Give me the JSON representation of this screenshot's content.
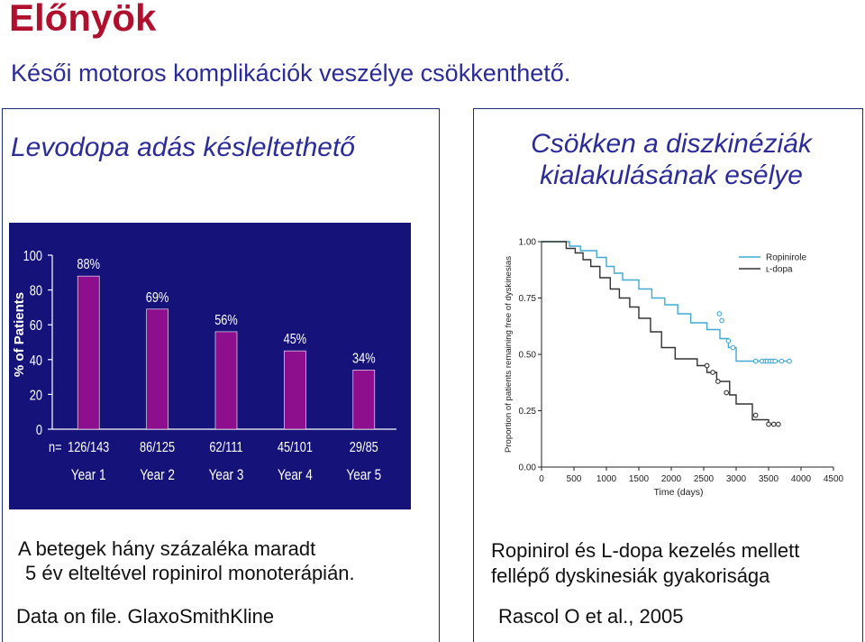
{
  "slide": {
    "title": "Előnyök",
    "subtitle": "Késői motoros komplikációk veszélye csökkenthető.",
    "left": {
      "heading": "Levodopa adás késleltethető",
      "caption_line1": "A betegek hány százaléka maradt",
      "caption_line2": "5 év elteltével ropinirol monoterápián.",
      "source": "Data on file. GlaxoSmithKline"
    },
    "right": {
      "heading_line1": "Csökken a diszkinéziák",
      "heading_line2": "kialakulásának esélye",
      "caption_line1": "Ropinirol és L-dopa kezelés mellett",
      "caption_line2": "fellépő dyskinesiák gyakorisága",
      "source": "Rascol O et al., 2005"
    }
  },
  "colors": {
    "title": "#b0102e",
    "text_blue": "#2b2b9a",
    "bar_panel_bg": "#15137a",
    "bar_fill": "#8e0f8e",
    "ropinirole_line": "#41a9d6",
    "ldopa_line": "#333333"
  },
  "chart_data": [
    {
      "type": "bar",
      "ylabel": "% of Patients",
      "ylim": [
        0,
        100
      ],
      "yticks": [
        "0",
        "20",
        "40",
        "60",
        "80",
        "100"
      ],
      "n_prefix": "n=",
      "categories": [
        "Year 1",
        "Year 2",
        "Year 3",
        "Year 4",
        "Year 5"
      ],
      "values": [
        88,
        69,
        56,
        45,
        34
      ],
      "value_labels": [
        "88%",
        "69%",
        "56%",
        "45%",
        "34%"
      ],
      "n_labels": [
        "126/143",
        "86/125",
        "62/111",
        "45/101",
        "29/85"
      ],
      "grid": false
    },
    {
      "type": "line",
      "xlabel": "Time (days)",
      "ylabel": "Proportion of patients remaining free of dyskinesias",
      "xlim": [
        0,
        4500
      ],
      "ylim": [
        0,
        1
      ],
      "xticks": [
        "0",
        "500",
        "1000",
        "1500",
        "2000",
        "2500",
        "3000",
        "3500",
        "4000",
        "4500"
      ],
      "yticks": [
        "0.00",
        "0.25",
        "0.50",
        "0.75",
        "1.00"
      ],
      "legend_position": "top-right",
      "series": [
        {
          "name": "Ropinirole",
          "step_points": [
            [
              0,
              1.0
            ],
            [
              430,
              1.0
            ],
            [
              430,
              0.98
            ],
            [
              600,
              0.98
            ],
            [
              600,
              0.96
            ],
            [
              850,
              0.96
            ],
            [
              850,
              0.93
            ],
            [
              1000,
              0.93
            ],
            [
              1000,
              0.89
            ],
            [
              1120,
              0.89
            ],
            [
              1120,
              0.86
            ],
            [
              1250,
              0.86
            ],
            [
              1250,
              0.83
            ],
            [
              1500,
              0.83
            ],
            [
              1500,
              0.79
            ],
            [
              1700,
              0.79
            ],
            [
              1700,
              0.75
            ],
            [
              1900,
              0.75
            ],
            [
              1900,
              0.72
            ],
            [
              2100,
              0.72
            ],
            [
              2100,
              0.68
            ],
            [
              2300,
              0.68
            ],
            [
              2300,
              0.64
            ],
            [
              2550,
              0.64
            ],
            [
              2550,
              0.61
            ],
            [
              2750,
              0.61
            ],
            [
              2750,
              0.57
            ],
            [
              2880,
              0.57
            ],
            [
              2880,
              0.53
            ],
            [
              3000,
              0.53
            ],
            [
              3000,
              0.47
            ],
            [
              3850,
              0.47
            ]
          ],
          "censored": [
            [
              2740,
              0.68
            ],
            [
              2780,
              0.65
            ],
            [
              2880,
              0.56
            ],
            [
              2950,
              0.53
            ],
            [
              3300,
              0.47
            ],
            [
              3400,
              0.47
            ],
            [
              3450,
              0.47
            ],
            [
              3480,
              0.47
            ],
            [
              3520,
              0.47
            ],
            [
              3560,
              0.47
            ],
            [
              3600,
              0.47
            ],
            [
              3700,
              0.47
            ],
            [
              3820,
              0.47
            ]
          ]
        },
        {
          "name": "ʟ-dopa",
          "step_points": [
            [
              0,
              1.0
            ],
            [
              380,
              1.0
            ],
            [
              380,
              0.97
            ],
            [
              520,
              0.97
            ],
            [
              520,
              0.95
            ],
            [
              640,
              0.95
            ],
            [
              640,
              0.92
            ],
            [
              760,
              0.92
            ],
            [
              760,
              0.89
            ],
            [
              900,
              0.89
            ],
            [
              900,
              0.84
            ],
            [
              1060,
              0.84
            ],
            [
              1060,
              0.79
            ],
            [
              1200,
              0.79
            ],
            [
              1200,
              0.75
            ],
            [
              1360,
              0.75
            ],
            [
              1360,
              0.71
            ],
            [
              1500,
              0.71
            ],
            [
              1500,
              0.66
            ],
            [
              1680,
              0.66
            ],
            [
              1680,
              0.6
            ],
            [
              1850,
              0.6
            ],
            [
              1850,
              0.53
            ],
            [
              2060,
              0.53
            ],
            [
              2060,
              0.48
            ],
            [
              2400,
              0.48
            ],
            [
              2400,
              0.45
            ],
            [
              2550,
              0.45
            ],
            [
              2550,
              0.42
            ],
            [
              2700,
              0.42
            ],
            [
              2700,
              0.38
            ],
            [
              2900,
              0.38
            ],
            [
              2900,
              0.32
            ],
            [
              3000,
              0.32
            ],
            [
              3000,
              0.28
            ],
            [
              3250,
              0.28
            ],
            [
              3250,
              0.21
            ],
            [
              3500,
              0.21
            ],
            [
              3500,
              0.19
            ],
            [
              3650,
              0.19
            ]
          ],
          "censored": [
            [
              2550,
              0.45
            ],
            [
              2640,
              0.42
            ],
            [
              2720,
              0.38
            ],
            [
              2850,
              0.33
            ],
            [
              3300,
              0.23
            ],
            [
              3500,
              0.19
            ],
            [
              3580,
              0.19
            ],
            [
              3650,
              0.19
            ]
          ]
        }
      ]
    }
  ]
}
